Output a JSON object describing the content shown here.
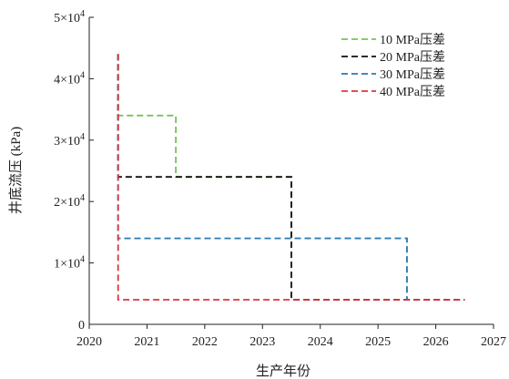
{
  "chart_data": {
    "type": "line",
    "xlabel": "生产年份",
    "ylabel": "井底流压 (kPa)",
    "xlim": [
      2020,
      2027
    ],
    "ylim": [
      0,
      50000
    ],
    "xticks": [
      "2020",
      "2021",
      "2022",
      "2023",
      "2024",
      "2025",
      "2026",
      "2027"
    ],
    "yticks": [
      {
        "value": 0,
        "label": "0",
        "sup": ""
      },
      {
        "value": 10000,
        "label": "1×10",
        "sup": "4"
      },
      {
        "value": 20000,
        "label": "2×10",
        "sup": "4"
      },
      {
        "value": 30000,
        "label": "3×10",
        "sup": "4"
      },
      {
        "value": 40000,
        "label": "4×10",
        "sup": "4"
      },
      {
        "value": 50000,
        "label": "5×10",
        "sup": "4"
      }
    ],
    "legend_position": "top-right",
    "series": [
      {
        "name": "10 MPa压差",
        "color": "#77c25a",
        "x": [
          2020.5,
          2020.5,
          2021.5,
          2021.5,
          2023.5,
          2023.5,
          2025.5,
          2025.5,
          2026.5
        ],
        "y": [
          44000,
          34000,
          34000,
          24000,
          24000,
          14000,
          14000,
          4000,
          4000
        ]
      },
      {
        "name": "20 MPa压差",
        "color": "#111111",
        "x": [
          2020.5,
          2020.5,
          2023.5,
          2023.5,
          2026.5
        ],
        "y": [
          44000,
          24000,
          24000,
          4000,
          4000
        ]
      },
      {
        "name": "30 MPa压差",
        "color": "#2a7ab0",
        "x": [
          2020.5,
          2020.5,
          2025.5,
          2025.5,
          2026.5
        ],
        "y": [
          44000,
          14000,
          14000,
          4000,
          4000
        ]
      },
      {
        "name": "40 MPa压差",
        "color": "#e0343c",
        "x": [
          2020.5,
          2020.5,
          2026.5
        ],
        "y": [
          44000,
          4000,
          4000
        ]
      }
    ]
  }
}
